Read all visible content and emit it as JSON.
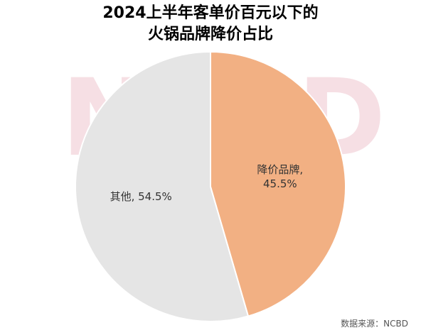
{
  "title_line1": "2024上半年客单价百元以下的",
  "title_line2": "火锅品牌降价占比",
  "source": "数据来源：NCBD",
  "watermark": "NCBD",
  "chart_data": {
    "type": "pie",
    "title": "2024上半年客单价百元以下的火锅品牌降价占比",
    "series": [
      {
        "name": "降价品牌",
        "value": 45.5,
        "label": "降价品牌,",
        "value_label": "45.5%",
        "color": "#f2b083"
      },
      {
        "name": "其他",
        "value": 54.5,
        "label": "其他, 54.5%",
        "color": "#e5e5e5"
      }
    ],
    "start_angle_deg": 0,
    "direction": "clockwise"
  }
}
